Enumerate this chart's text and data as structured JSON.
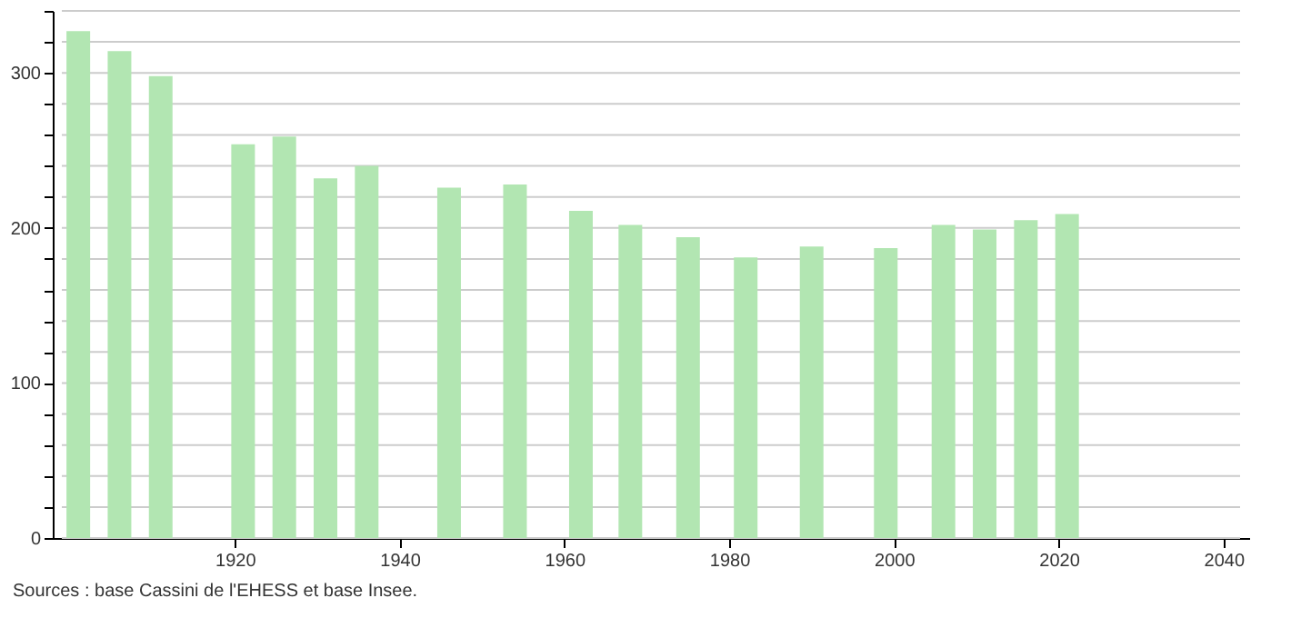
{
  "chart_data": {
    "type": "bar",
    "x": [
      1901,
      1906,
      1911,
      1921,
      1926,
      1931,
      1936,
      1946,
      1954,
      1962,
      1968,
      1975,
      1982,
      1990,
      1999,
      2006,
      2011,
      2016,
      2021
    ],
    "values": [
      327,
      314,
      298,
      254,
      259,
      232,
      240,
      226,
      228,
      211,
      202,
      194,
      181,
      188,
      187,
      202,
      199,
      205,
      209
    ],
    "color": "#b2e6b2",
    "xlim": [
      1899,
      2042
    ],
    "xticks": [
      1920,
      1940,
      1960,
      1980,
      2000,
      2020,
      2040
    ],
    "ylim": [
      0,
      340
    ],
    "yticks": [
      0,
      {
        "value": 20,
        "label": null
      },
      {
        "value": 40,
        "label": null
      },
      {
        "value": 60,
        "label": null
      },
      {
        "value": 80,
        "label": null
      },
      100,
      {
        "value": 120,
        "label": null
      },
      {
        "value": 140,
        "label": null
      },
      {
        "value": 160,
        "label": null
      },
      {
        "value": 180,
        "label": null
      },
      200,
      {
        "value": 220,
        "label": null
      },
      {
        "value": 240,
        "label": null
      },
      {
        "value": 260,
        "label": null
      },
      {
        "value": 280,
        "label": null
      },
      300,
      {
        "value": 320,
        "label": null
      },
      {
        "value": 340,
        "label": null
      }
    ],
    "grid": "y",
    "annotations": [
      "Sources : base Cassini de l'EHESS et base Insee."
    ]
  }
}
